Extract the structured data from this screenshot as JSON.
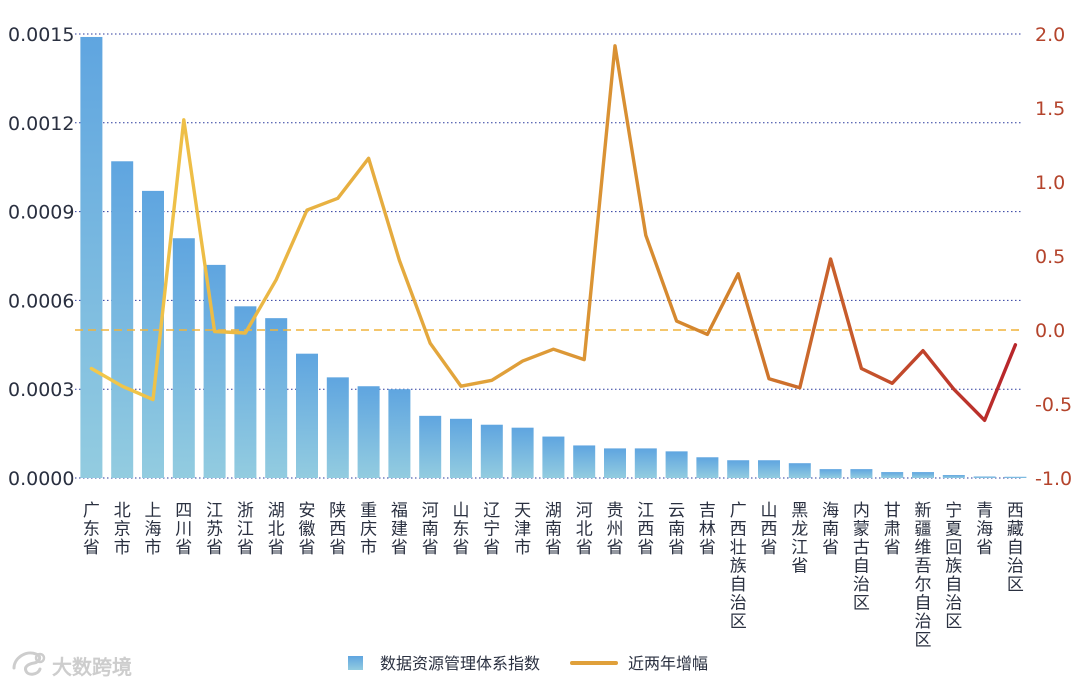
{
  "chart_data": {
    "type": "bar+line",
    "categories": [
      "广东省",
      "北京市",
      "上海市",
      "四川省",
      "江苏省",
      "浙江省",
      "湖北省",
      "安徽省",
      "陕西省",
      "重庆市",
      "福建省",
      "河南省",
      "山东省",
      "辽宁省",
      "天津市",
      "湖南省",
      "河北省",
      "贵州省",
      "江西省",
      "云南省",
      "吉林省",
      "广西壮族自治区",
      "山西省",
      "黑龙江省",
      "海南省",
      "内蒙古自治区",
      "甘肃省",
      "新疆维吾尔自治区",
      "宁夏回族自治区",
      "青海省",
      "西藏自治区"
    ],
    "series": [
      {
        "name": "数据资源管理体系指数",
        "type": "bar",
        "axis": "left",
        "values": [
          0.00149,
          0.00107,
          0.00097,
          0.00081,
          0.00072,
          0.00058,
          0.00054,
          0.00042,
          0.00034,
          0.00031,
          0.0003,
          0.00021,
          0.0002,
          0.00018,
          0.00017,
          0.00014,
          0.00011,
          0.0001,
          0.0001,
          9e-05,
          7e-05,
          6e-05,
          6e-05,
          5e-05,
          3e-05,
          3e-05,
          2e-05,
          2e-05,
          1e-05,
          5e-06,
          3e-06
        ]
      },
      {
        "name": "近两年增幅",
        "type": "line",
        "axis": "right",
        "values": [
          -0.26,
          -0.38,
          -0.47,
          1.42,
          -0.01,
          -0.02,
          0.34,
          0.81,
          0.89,
          1.16,
          0.47,
          -0.09,
          -0.38,
          -0.34,
          -0.21,
          -0.13,
          -0.2,
          1.92,
          0.64,
          0.06,
          -0.03,
          0.38,
          -0.33,
          -0.39,
          0.48,
          -0.26,
          -0.36,
          -0.14,
          -0.4,
          -0.61,
          -0.1
        ]
      }
    ],
    "y_left": {
      "ticks": [
        "0.0015",
        "0.0012",
        "0.0009",
        "0.0006",
        "0.0003",
        "0.0000"
      ],
      "ylim": [
        0,
        0.0015
      ]
    },
    "y_right": {
      "ticks": [
        "2.0",
        "1.5",
        "1.0",
        "0.5",
        "0.0",
        "-0.5",
        "-1.0"
      ],
      "ylim": [
        -1.0,
        2.0
      ]
    },
    "reference_line": {
      "axis": "right",
      "value": 0.0
    },
    "grid": true,
    "legend": {
      "position": "bottom-center",
      "items": [
        "数据资源管理体系指数",
        "近两年增幅"
      ]
    },
    "colors": {
      "bar_top": "#5fa5e0",
      "bar_bottom": "#93cce0",
      "line_start": "#f2c84b",
      "line_mid": "#d2812c",
      "line_end": "#b8272b",
      "grid": "#2b3a9e",
      "zero_line": "#f0b43c",
      "left_axis_text": "#2a3040",
      "right_axis_text": "#b4442c"
    }
  },
  "watermark": {
    "text": "大数跨境"
  }
}
